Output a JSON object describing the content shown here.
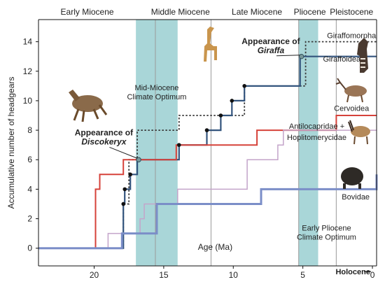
{
  "chart_data": {
    "type": "line",
    "xlabel": "Age (Ma)",
    "ylabel": "Accumulative number of headgears",
    "xlim": [
      24,
      -0.3
    ],
    "ylim": [
      -1.2,
      15.5
    ],
    "x_ticks": [
      20,
      15,
      10,
      5,
      0
    ],
    "y_ticks": [
      0,
      2,
      4,
      6,
      8,
      10,
      12,
      14
    ],
    "x_tick_labels": [
      "20",
      "15",
      "10",
      "5",
      "0"
    ],
    "y_tick_labels": [
      "0",
      "2",
      "4",
      "6",
      "8",
      "10",
      "12",
      "14"
    ],
    "epochs": [
      {
        "label": "Early Miocene",
        "x": 20.5
      },
      {
        "label": "Middle Miocene",
        "x": 13.8
      },
      {
        "label": "Late Miocene",
        "x": 8.3
      },
      {
        "label": "Pliocene",
        "x": 4.5
      },
      {
        "label": "Pleistocene",
        "x": 1.5
      }
    ],
    "climate_bands": [
      {
        "label_lines": [
          "Mid-Miocene",
          "Climate Optimum"
        ],
        "x_start": 17.0,
        "x_end": 14.0,
        "label_x": 15.5,
        "label_y": 10.7
      },
      {
        "label_lines": [
          "Early Pliocene",
          "Climate Optimum"
        ],
        "x_start": 5.3,
        "x_end": 3.9,
        "label_x": 3.3,
        "label_y": 1.2
      }
    ],
    "band_color": "#a9d6d8",
    "vertical_lines": [
      15.6,
      11.6,
      5.3,
      2.6
    ],
    "series": [
      {
        "name": "Giraffomorpha",
        "color": "#3a3a3a",
        "dash": true,
        "width": 1.8,
        "points": [
          [
            24,
            0
          ],
          [
            17.9,
            0
          ],
          [
            17.9,
            3
          ],
          [
            17.5,
            3
          ],
          [
            17.5,
            6
          ],
          [
            16.9,
            6
          ],
          [
            16.9,
            8
          ],
          [
            13.9,
            8
          ],
          [
            13.9,
            9
          ],
          [
            9.2,
            9
          ],
          [
            9.2,
            11
          ],
          [
            4.8,
            11
          ],
          [
            4.8,
            14
          ],
          [
            -0.3,
            14
          ]
        ]
      },
      {
        "name": "Giraffoidea",
        "color": "#33547d",
        "dash": false,
        "width": 2.2,
        "points": [
          [
            24,
            0
          ],
          [
            17.9,
            0
          ],
          [
            17.9,
            3
          ],
          [
            17.8,
            3
          ],
          [
            17.8,
            4
          ],
          [
            17.4,
            4
          ],
          [
            17.4,
            5
          ],
          [
            16.9,
            5
          ],
          [
            16.9,
            6
          ],
          [
            13.9,
            6
          ],
          [
            13.9,
            7
          ],
          [
            11.9,
            7
          ],
          [
            11.9,
            8
          ],
          [
            10.9,
            8
          ],
          [
            10.9,
            9
          ],
          [
            10.1,
            9
          ],
          [
            10.1,
            10
          ],
          [
            9.2,
            10
          ],
          [
            9.2,
            11
          ],
          [
            5.2,
            11
          ],
          [
            5.2,
            13
          ],
          [
            -0.3,
            13
          ]
        ]
      },
      {
        "name": "Cervoidea",
        "color": "#d6423a",
        "dash": false,
        "width": 2,
        "points": [
          [
            24,
            0
          ],
          [
            19.9,
            0
          ],
          [
            19.9,
            4
          ],
          [
            19.6,
            4
          ],
          [
            19.6,
            5
          ],
          [
            17.9,
            5
          ],
          [
            17.9,
            6
          ],
          [
            14.1,
            6
          ],
          [
            14.1,
            7
          ],
          [
            8.3,
            7
          ],
          [
            8.3,
            8
          ],
          [
            2.6,
            8
          ],
          [
            2.6,
            9
          ],
          [
            -0.3,
            9
          ]
        ]
      },
      {
        "name": "Antilocapridae + Hoplitomerycidae",
        "color": "#c4a4ca",
        "dash": false,
        "width": 1.5,
        "points": [
          [
            24,
            0
          ],
          [
            19.0,
            0
          ],
          [
            19.0,
            1
          ],
          [
            16.7,
            1
          ],
          [
            16.7,
            2
          ],
          [
            16.4,
            2
          ],
          [
            16.4,
            3
          ],
          [
            14.0,
            3
          ],
          [
            14.0,
            4
          ],
          [
            9.0,
            4
          ],
          [
            9.0,
            6
          ],
          [
            6.8,
            6
          ],
          [
            6.8,
            7
          ],
          [
            6.4,
            7
          ],
          [
            6.4,
            8
          ],
          [
            -0.3,
            8
          ]
        ]
      },
      {
        "name": "Bovidae",
        "color": "#7b8ec8",
        "dash": false,
        "width": 3,
        "points": [
          [
            24,
            0
          ],
          [
            18.0,
            0
          ],
          [
            18.0,
            1
          ],
          [
            15.5,
            1
          ],
          [
            15.5,
            3
          ],
          [
            8.0,
            3
          ],
          [
            8.0,
            4
          ],
          [
            -0.3,
            4
          ],
          [
            -0.3,
            5
          ]
        ]
      }
    ],
    "markers": [
      {
        "x": 17.9,
        "y": 3
      },
      {
        "x": 17.8,
        "y": 4
      },
      {
        "x": 17.4,
        "y": 5
      },
      {
        "x": 13.9,
        "y": 7
      },
      {
        "x": 11.9,
        "y": 8
      },
      {
        "x": 10.9,
        "y": 9
      },
      {
        "x": 10.1,
        "y": 10
      },
      {
        "x": 9.2,
        "y": 11
      }
    ],
    "highlight_markers": [
      {
        "x": 16.8,
        "y": 6
      },
      {
        "x": 5.1,
        "y": 13
      }
    ],
    "series_labels": [
      {
        "text": "Giraffomorpha",
        "x": 1.5,
        "y": 14.25
      },
      {
        "text": "Giraffoidea",
        "x": 2.2,
        "y": 12.65
      },
      {
        "text": "Cervoidea",
        "x": 1.5,
        "y": 9.3
      },
      {
        "text": "Antilocapridae +",
        "x": 4.0,
        "y": 8.1
      },
      {
        "text": "Hoplitomerycidae",
        "x": 4.0,
        "y": 7.35
      },
      {
        "text": "Bovidae",
        "x": 1.2,
        "y": 3.3
      }
    ],
    "annotations": [
      {
        "line1": "Appearance of",
        "line2": "Discokeryx",
        "x": 19.3,
        "y": 7.65,
        "arrow_to": [
          16.8,
          6
        ]
      },
      {
        "line1": "Appearance of",
        "line2": "Giraffa",
        "x": 7.3,
        "y": 13.85,
        "arrow_to": [
          5.1,
          13
        ]
      }
    ],
    "holocene_label": "Holocene"
  }
}
